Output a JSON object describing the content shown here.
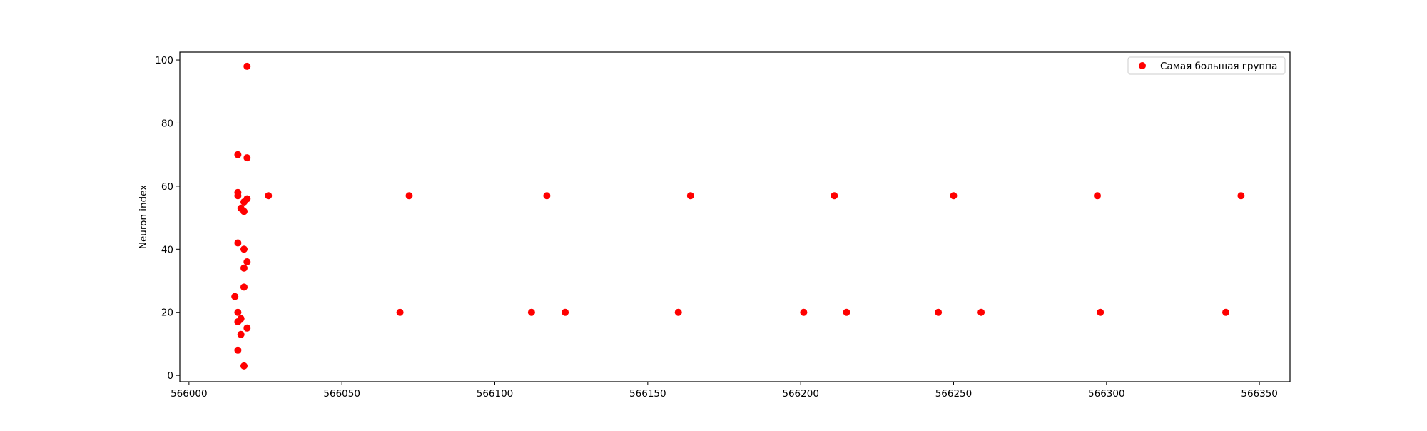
{
  "chart_data": {
    "type": "scatter",
    "title": "",
    "xlabel": "",
    "ylabel": "Neuron index",
    "xlim": [
      565997,
      566360
    ],
    "ylim": [
      -2,
      102.5
    ],
    "xticks": [
      566000,
      566050,
      566100,
      566150,
      566200,
      566250,
      566300,
      566350
    ],
    "yticks": [
      0,
      20,
      40,
      60,
      80,
      100
    ],
    "grid": false,
    "legend": {
      "position": "top-right",
      "entries": [
        "Самая большая группа"
      ]
    },
    "marker_color": "#ff0000",
    "series": [
      {
        "name": "Самая большая группа",
        "color": "#ff0000",
        "points": [
          [
            566019,
            98
          ],
          [
            566016,
            70
          ],
          [
            566019,
            69
          ],
          [
            566016,
            58
          ],
          [
            566016,
            57
          ],
          [
            566026,
            57
          ],
          [
            566072,
            57
          ],
          [
            566117,
            57
          ],
          [
            566164,
            57
          ],
          [
            566211,
            57
          ],
          [
            566250,
            57
          ],
          [
            566297,
            57
          ],
          [
            566344,
            57
          ],
          [
            566019,
            56
          ],
          [
            566018,
            55
          ],
          [
            566017,
            53
          ],
          [
            566018,
            52
          ],
          [
            566016,
            42
          ],
          [
            566018,
            40
          ],
          [
            566019,
            36
          ],
          [
            566018,
            34
          ],
          [
            566018,
            28
          ],
          [
            566015,
            25
          ],
          [
            566016,
            20
          ],
          [
            566069,
            20
          ],
          [
            566112,
            20
          ],
          [
            566123,
            20
          ],
          [
            566160,
            20
          ],
          [
            566201,
            20
          ],
          [
            566215,
            20
          ],
          [
            566245,
            20
          ],
          [
            566259,
            20
          ],
          [
            566298,
            20
          ],
          [
            566339,
            20
          ],
          [
            566017,
            18
          ],
          [
            566016,
            17
          ],
          [
            566019,
            15
          ],
          [
            566017,
            13
          ],
          [
            566016,
            8
          ],
          [
            566018,
            3
          ]
        ]
      }
    ]
  }
}
